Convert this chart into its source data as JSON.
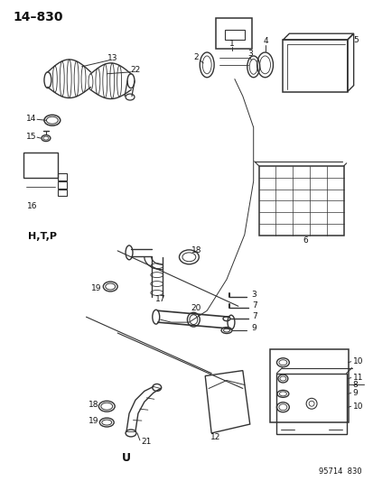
{
  "title": "14–830",
  "bottom_ref": "95714  830",
  "background_color": "#ffffff",
  "diagram_color": "#333333",
  "figsize": [
    4.14,
    5.33
  ],
  "dpi": 100
}
